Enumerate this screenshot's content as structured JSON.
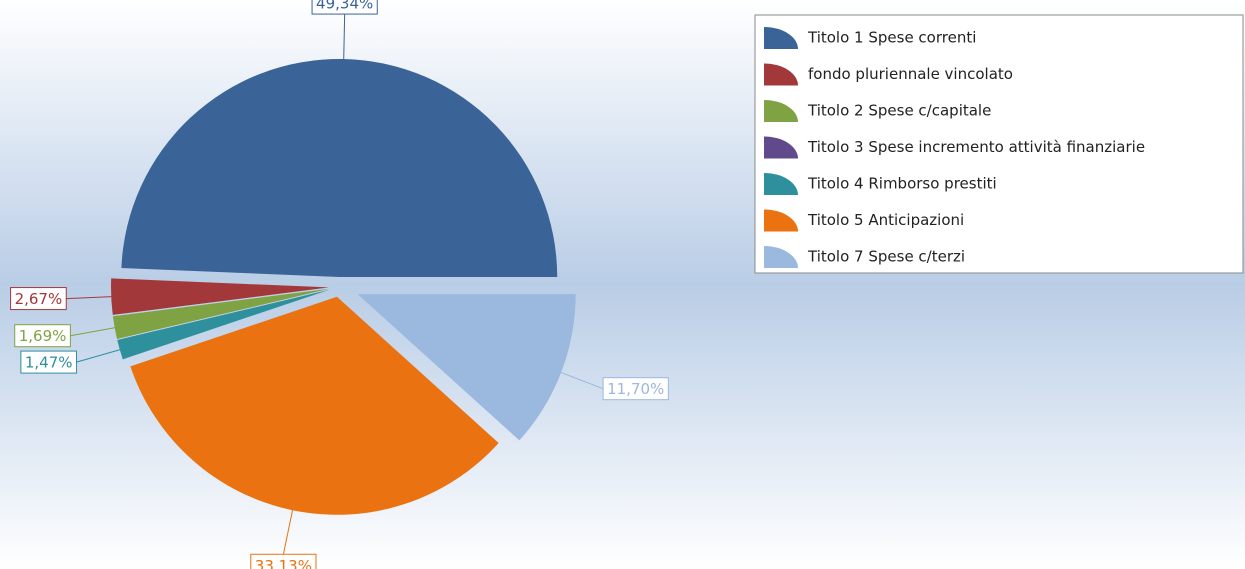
{
  "chart_data": {
    "type": "pie",
    "categories": [
      "Titolo 1 Spese correnti",
      "fondo pluriennale vincolato",
      "Titolo 2 Spese c/capitale",
      "Titolo 3 Spese incremento attività finanziarie",
      "Titolo 4 Rimborso prestiti",
      "Titolo 5 Anticipazioni",
      "Titolo 7 Spese c/terzi"
    ],
    "values": [
      49.34,
      2.67,
      1.69,
      0,
      1.47,
      33.13,
      11.7
    ],
    "value_labels": [
      "49,34%",
      "2,67%",
      "1,69%",
      null,
      "1,47%",
      "33,13%",
      "11,70%"
    ],
    "colors": [
      "#3a6497",
      "#a3383a",
      "#7fa343",
      "#604a8c",
      "#2e909c",
      "#ea7210",
      "#9bb8de"
    ],
    "legend": "top-right"
  }
}
